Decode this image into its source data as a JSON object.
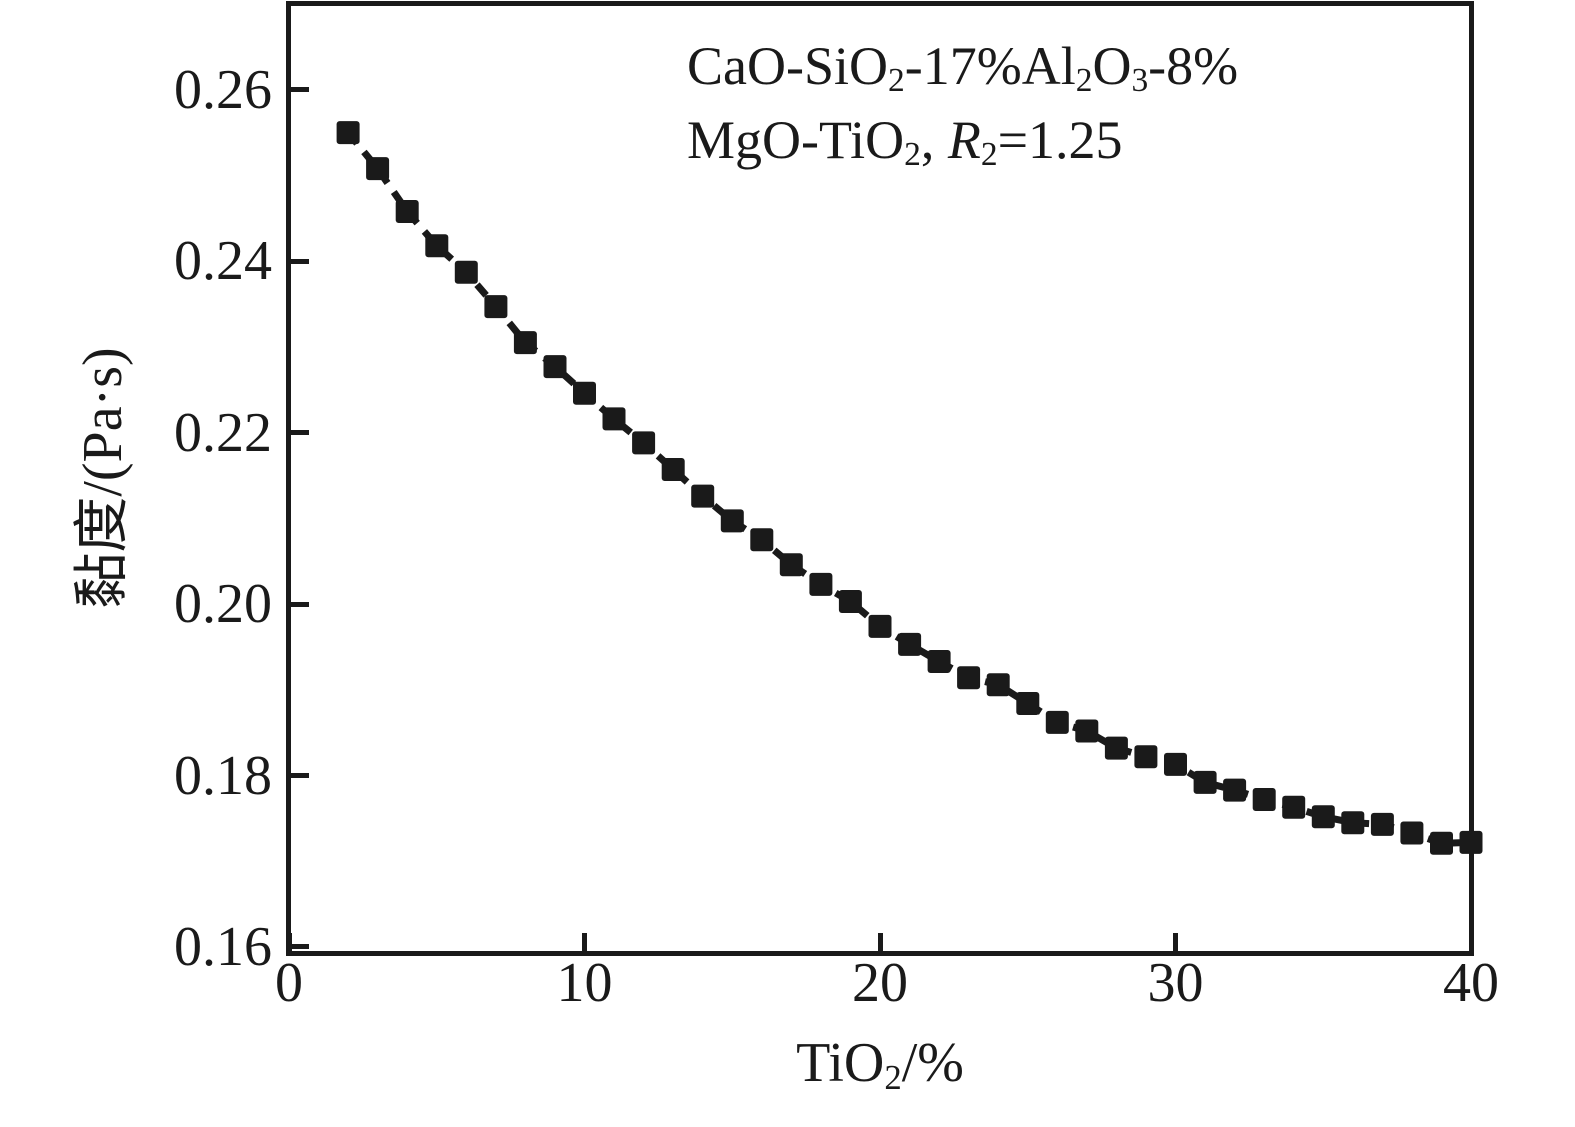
{
  "figure": {
    "background": "#ffffff",
    "ink": "#1a1a1a"
  },
  "chart_data": {
    "type": "line",
    "marker": "square",
    "grid": false,
    "legend": null,
    "annotation": {
      "lines": [
        [
          {
            "t": "CaO-SiO"
          },
          {
            "t": "2",
            "sub": true
          },
          {
            "t": "-17%Al"
          },
          {
            "t": "2",
            "sub": true
          },
          {
            "t": "O"
          },
          {
            "t": "3",
            "sub": true
          },
          {
            "t": "-8%"
          }
        ],
        [
          {
            "t": "MgO-TiO"
          },
          {
            "t": "2",
            "sub": true
          },
          {
            "t": ", "
          },
          {
            "t": "R",
            "italic": true
          },
          {
            "t": "2",
            "sub": true
          },
          {
            "t": "=1.25"
          }
        ]
      ],
      "plain_text": [
        "CaO-SiO2-17%Al2O3-8%",
        "MgO-TiO2, R2=1.25"
      ]
    },
    "xlabel_rich": [
      {
        "t": "TiO"
      },
      {
        "t": "2",
        "sub": true
      },
      {
        "t": "/%"
      }
    ],
    "xlabel_plain": "TiO2/%",
    "ylabel": "黏度/(Pa·s)",
    "xlim": [
      0,
      40
    ],
    "ylim": [
      0.1593,
      0.27
    ],
    "x_ticks": [
      {
        "v": 0,
        "label": "0"
      },
      {
        "v": 10,
        "label": "10"
      },
      {
        "v": 20,
        "label": "20"
      },
      {
        "v": 30,
        "label": "30"
      },
      {
        "v": 40,
        "label": "40"
      }
    ],
    "y_ticks": [
      {
        "v": 0.16,
        "label": "0.16"
      },
      {
        "v": 0.18,
        "label": "0.18"
      },
      {
        "v": 0.2,
        "label": "0.20"
      },
      {
        "v": 0.22,
        "label": "0.22"
      },
      {
        "v": 0.24,
        "label": "0.24"
      },
      {
        "v": 0.26,
        "label": "0.26"
      }
    ],
    "series": [
      {
        "name": "viscosity",
        "x": [
          2,
          3,
          4,
          5,
          6,
          7,
          8,
          9,
          10,
          11,
          12,
          13,
          14,
          15,
          16,
          17,
          18,
          19,
          20,
          21,
          22,
          23,
          24,
          25,
          26,
          27,
          28,
          29,
          30,
          31,
          32,
          33,
          34,
          35,
          36,
          37,
          38,
          39,
          40
        ],
        "y": [
          0.255,
          0.2508,
          0.2458,
          0.2418,
          0.2387,
          0.2347,
          0.2305,
          0.2277,
          0.2246,
          0.2216,
          0.2188,
          0.2157,
          0.2126,
          0.2097,
          0.2075,
          0.2046,
          0.2023,
          0.2003,
          0.1974,
          0.1953,
          0.1933,
          0.1914,
          0.1906,
          0.1884,
          0.1862,
          0.1852,
          0.1832,
          0.1822,
          0.1813,
          0.1792,
          0.1783,
          0.1772,
          0.1763,
          0.1752,
          0.1745,
          0.1743,
          0.1733,
          0.1721,
          0.1722
        ]
      }
    ],
    "colors": {
      "marker": "#1a1a1a",
      "line": "#1a1a1a",
      "axis": "#1a1a1a",
      "text": "#1a1a1a",
      "background": "#ffffff"
    }
  }
}
